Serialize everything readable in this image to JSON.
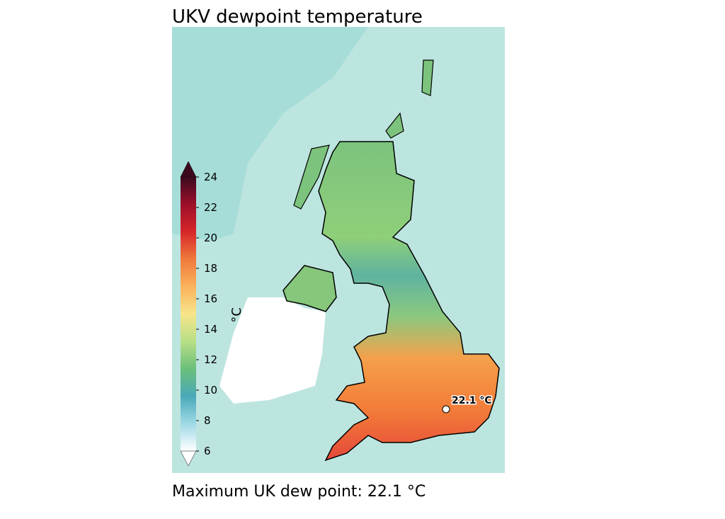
{
  "title": "UKV dewpoint temperature",
  "colorbar": {
    "label": "°C",
    "range": [
      6,
      24
    ],
    "ticks": [
      6,
      8,
      10,
      12,
      14,
      16,
      18,
      20,
      22,
      24
    ],
    "colors": [
      "#ffffff",
      "#9fd9e6",
      "#4aa9b8",
      "#6bbf7a",
      "#b8df86",
      "#f7e58a",
      "#fbb25c",
      "#f07a3c",
      "#d7262a",
      "#9c0f2a",
      "#3b0a1e"
    ]
  },
  "annotation": "22.1 °C",
  "caption": "Maximum UK dew point: 22.1 °C"
}
